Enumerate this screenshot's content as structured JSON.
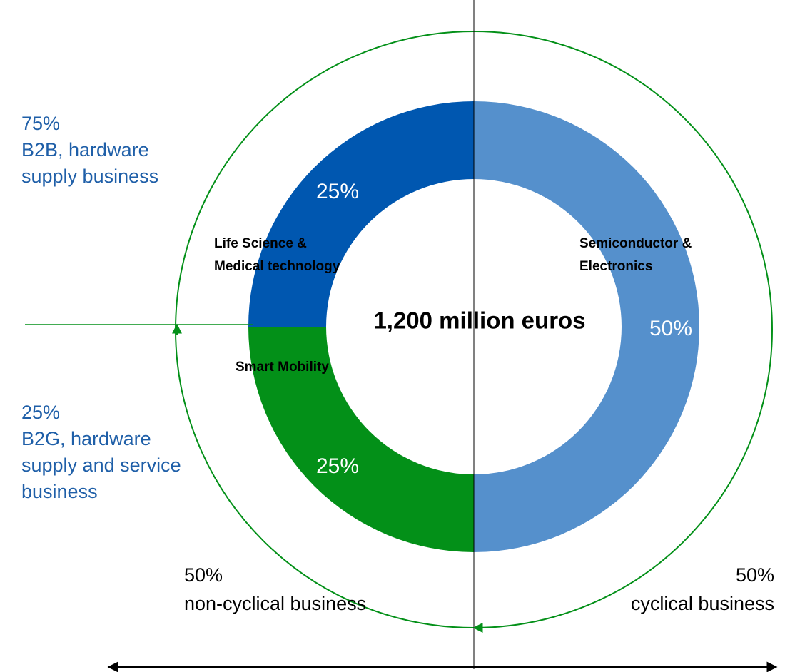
{
  "chart_data": {
    "type": "pie",
    "title": "1,200 million euros",
    "categories": [
      [
        "Semiconductor &",
        "Electronics"
      ],
      [
        "Smart Mobility"
      ],
      [
        "Life Science &",
        "Medical technology"
      ]
    ],
    "values": [
      50,
      25,
      25
    ],
    "value_labels": [
      "50%",
      "25%",
      "25%"
    ],
    "colors": [
      "#5590cc",
      "#039018",
      "#0057b0"
    ],
    "annotations": [
      [
        "75%",
        "B2B, hardware",
        "supply business"
      ],
      [
        "25%",
        "B2G, hardware",
        "supply and service",
        "business"
      ],
      [
        "50%",
        "non-cyclical business"
      ],
      [
        "50%",
        "cyclical business"
      ]
    ]
  }
}
